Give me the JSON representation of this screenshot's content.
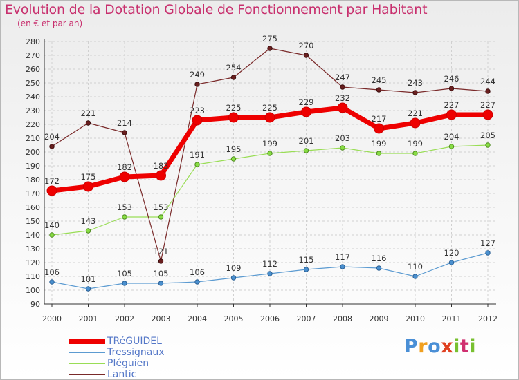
{
  "title": "Evolution de la Dotation Globale de Fonctionnement par Habitant",
  "subtitle": "(en € et par an)",
  "logo_text": "Proxiti",
  "chart_data": {
    "type": "line",
    "title": "Evolution de la Dotation Globale de Fonctionnement par Habitant",
    "subtitle": "(en € et par an)",
    "xlabel": "",
    "ylabel": "",
    "x": [
      "2000",
      "2001",
      "2002",
      "2003",
      "2004",
      "2005",
      "2006",
      "2007",
      "2008",
      "2009",
      "2010",
      "2011",
      "2012"
    ],
    "ylim": [
      90,
      280
    ],
    "y_ticks": [
      90,
      100,
      110,
      120,
      130,
      140,
      150,
      160,
      170,
      180,
      190,
      200,
      210,
      220,
      230,
      240,
      250,
      260,
      270,
      280
    ],
    "grid": true,
    "legend_position": "bottom-left",
    "series": [
      {
        "name": "TRéGUIDEL",
        "color": "#ee0000",
        "values": [
          172,
          175,
          182,
          183,
          223,
          225,
          225,
          229,
          232,
          217,
          221,
          227,
          227
        ]
      },
      {
        "name": "Tressignaux",
        "color": "#5c9bd1",
        "values": [
          106,
          101,
          105,
          105,
          106,
          109,
          112,
          115,
          117,
          116,
          110,
          120,
          127
        ]
      },
      {
        "name": "Pléguien",
        "color": "#99dd55",
        "values": [
          140,
          143,
          153,
          153,
          191,
          195,
          199,
          201,
          203,
          199,
          199,
          204,
          205
        ]
      },
      {
        "name": "Lantic",
        "color": "#7a2a2a",
        "values": [
          204,
          221,
          214,
          121,
          249,
          254,
          275,
          270,
          247,
          245,
          243,
          246,
          244
        ]
      }
    ]
  }
}
